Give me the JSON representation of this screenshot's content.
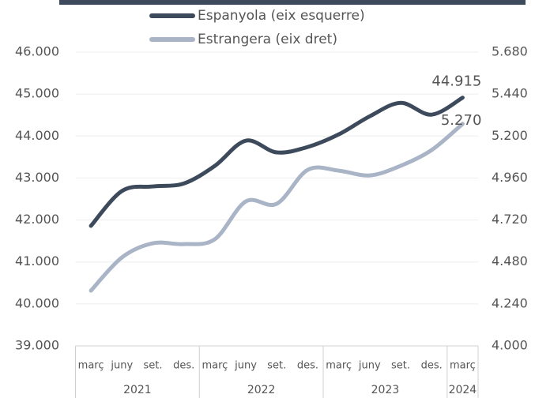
{
  "chart_data": {
    "type": "line",
    "categories": [
      "març",
      "juny",
      "set.",
      "des.",
      "març",
      "juny",
      "set.",
      "des.",
      "març",
      "juny",
      "set.",
      "des.",
      "març"
    ],
    "years": [
      "2021",
      null,
      null,
      null,
      "2022",
      null,
      null,
      null,
      "2023",
      null,
      null,
      null,
      "2024"
    ],
    "series": [
      {
        "name": "Espanyola (eix esquerre)",
        "color": "#3d4a5c",
        "values": [
          41860,
          42690,
          42800,
          42870,
          43290,
          43890,
          43610,
          43740,
          44040,
          44470,
          44790,
          44510,
          44915
        ],
        "value_labels": [
          null,
          null,
          null,
          null,
          null,
          null,
          null,
          null,
          null,
          null,
          null,
          null,
          "44.915"
        ]
      },
      {
        "name": "Estrangera (eix dret)",
        "color": "#a9b4c6",
        "axis": "y2",
        "values": [
          4316,
          4506,
          4587,
          4582,
          4610,
          4826,
          4813,
          5007,
          5002,
          4975,
          5030,
          5120,
          5270
        ],
        "value_labels": [
          null,
          null,
          null,
          null,
          null,
          null,
          null,
          null,
          null,
          null,
          null,
          null,
          "5.270"
        ]
      }
    ],
    "ylim": [
      39000,
      46000
    ],
    "yticks": [
      {
        "value": 39000,
        "label": "39.000"
      },
      {
        "value": 40000,
        "label": "40.000"
      },
      {
        "value": 41000,
        "label": "41.000"
      },
      {
        "value": 42000,
        "label": "42.000"
      },
      {
        "value": 43000,
        "label": "43.000"
      },
      {
        "value": 44000,
        "label": "44.000"
      },
      {
        "value": 45000,
        "label": "45.000"
      },
      {
        "value": 46000,
        "label": "46.000"
      }
    ],
    "y2lim": [
      4000,
      5680
    ],
    "y2ticks": [
      {
        "value": 4000,
        "label": "4.000"
      },
      {
        "value": 4240,
        "label": "4.240"
      },
      {
        "value": 4480,
        "label": "4.480"
      },
      {
        "value": 4720,
        "label": "4.720"
      },
      {
        "value": 4960,
        "label": "4.960"
      },
      {
        "value": 5200,
        "label": "5.200"
      },
      {
        "value": 5440,
        "label": "5.440"
      },
      {
        "value": 5680,
        "label": "5.680"
      }
    ],
    "grid": true
  }
}
